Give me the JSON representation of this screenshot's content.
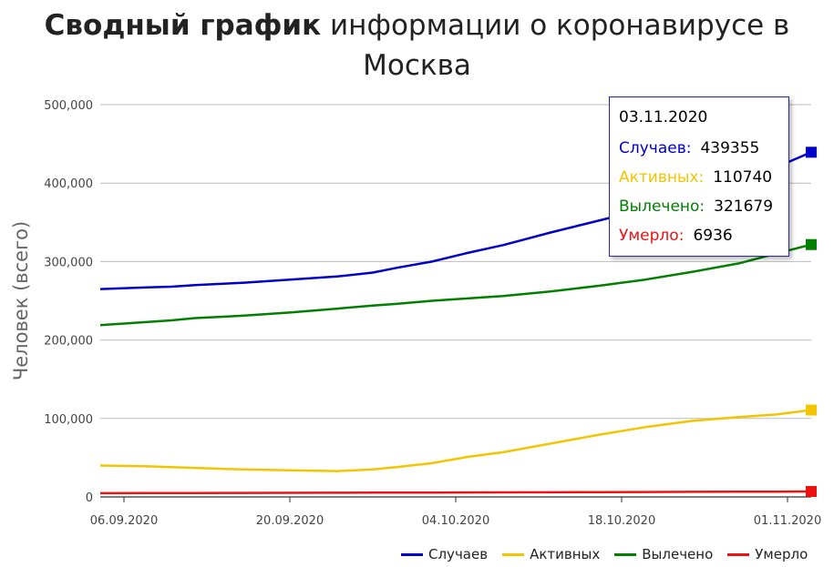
{
  "title_bold": "Сводный график",
  "title_rest": " информации о коронавирусе в Москва",
  "chart_data": {
    "type": "line",
    "title": "Сводный график информации о коронавирусе в Москва",
    "ylabel": "Человек (всего)",
    "xlabel": "",
    "ylim": [
      0,
      500000
    ],
    "y_ticks": [
      0,
      100000,
      200000,
      300000,
      400000,
      500000
    ],
    "y_tick_labels": [
      "0",
      "100,000",
      "200,000",
      "300,000",
      "400,000",
      "500,000"
    ],
    "x_range": [
      "2020-09-04",
      "2020-11-03"
    ],
    "x_ticks": [
      "2020-09-06",
      "2020-09-20",
      "2020-10-04",
      "2020-10-18",
      "2020-11-01"
    ],
    "x_tick_labels": [
      "06.09.2020",
      "20.09.2020",
      "04.10.2020",
      "18.10.2020",
      "01.11.2020"
    ],
    "grid": true,
    "legend_position": "bottom-right",
    "x": [
      "2020-09-04",
      "2020-09-08",
      "2020-09-10",
      "2020-09-12",
      "2020-09-16",
      "2020-09-20",
      "2020-09-24",
      "2020-09-27",
      "2020-09-29",
      "2020-10-02",
      "2020-10-05",
      "2020-10-08",
      "2020-10-12",
      "2020-10-16",
      "2020-10-20",
      "2020-10-24",
      "2020-10-28",
      "2020-10-31",
      "2020-11-03"
    ],
    "series": [
      {
        "name": "Случаев",
        "color": "#0000cc",
        "values": [
          265000,
          267000,
          268000,
          270000,
          273000,
          277000,
          281000,
          286000,
          292000,
          300000,
          311000,
          321000,
          337000,
          352000,
          367000,
          385000,
          405000,
          420000,
          439355
        ]
      },
      {
        "name": "Активных",
        "color": "#f2c500",
        "values": [
          40000,
          39000,
          38000,
          37000,
          35000,
          34000,
          33000,
          35000,
          38000,
          43000,
          51000,
          57000,
          68000,
          79000,
          89000,
          97000,
          102000,
          105000,
          110740
        ]
      },
      {
        "name": "Вылечено",
        "color": "#007f00",
        "values": [
          219000,
          223000,
          225000,
          228000,
          231000,
          235000,
          240000,
          244000,
          246000,
          250000,
          253000,
          256000,
          262000,
          269000,
          277000,
          287000,
          298000,
          310000,
          321679
        ]
      },
      {
        "name": "Умерло",
        "color": "#ee1111",
        "values": [
          4800,
          4900,
          4950,
          5000,
          5100,
          5200,
          5300,
          5400,
          5450,
          5550,
          5650,
          5750,
          5900,
          6100,
          6300,
          6450,
          6600,
          6750,
          6936
        ]
      }
    ]
  },
  "tooltip": {
    "date": "03.11.2020",
    "rows": [
      {
        "label": "Случаев:",
        "value": "439355",
        "color": "#0000cc"
      },
      {
        "label": "Активных:",
        "value": "110740",
        "color": "#f2c500"
      },
      {
        "label": "Вылечено:",
        "value": "321679",
        "color": "#007f00"
      },
      {
        "label": "Умерло:",
        "value": "6936",
        "color": "#ee1111"
      }
    ]
  },
  "legend": [
    {
      "label": "Случаев",
      "color": "#0000cc"
    },
    {
      "label": "Активных",
      "color": "#f2c500"
    },
    {
      "label": "Вылечено",
      "color": "#007f00"
    },
    {
      "label": "Умерло",
      "color": "#ee1111"
    }
  ]
}
